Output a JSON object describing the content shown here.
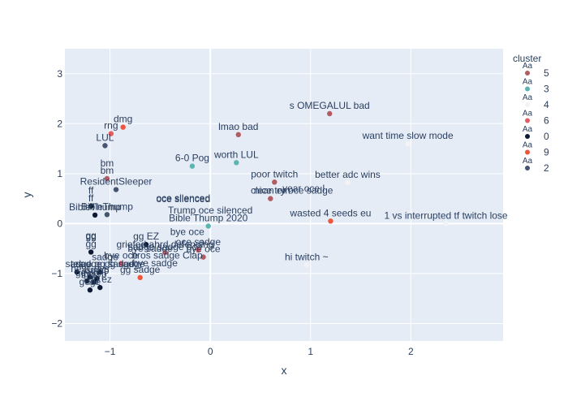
{
  "chart_data": {
    "type": "scatter",
    "title": "",
    "xlabel": "x",
    "ylabel": "y",
    "xlim": [
      -1.45,
      2.92
    ],
    "ylim": [
      -2.35,
      3.5
    ],
    "x_ticks": [
      -1,
      0,
      1,
      2
    ],
    "y_ticks": [
      -2,
      -1,
      0,
      1,
      2,
      3
    ],
    "x_tick_labels": [
      "−1",
      "0",
      "1",
      "2"
    ],
    "y_tick_labels": [
      "−2",
      "−1",
      "0",
      "1",
      "2",
      "3"
    ],
    "grid": true,
    "legend": {
      "title": "cluster",
      "placement": "top-right",
      "symbol_text": "Aa"
    },
    "series": [
      {
        "name": "5",
        "color": "#b25b61",
        "points": [
          {
            "x": 1.19,
            "y": 2.2,
            "label": "s OMEGALUL bad"
          },
          {
            "x": 0.28,
            "y": 1.78,
            "label": "lmao bad"
          },
          {
            "x": -1.03,
            "y": 0.9,
            "label": "bm"
          },
          {
            "x": 0.64,
            "y": 0.83,
            "label": "poor twitch"
          },
          {
            "x": 0.6,
            "y": 0.5,
            "label": "clean em"
          },
          {
            "x": -0.07,
            "y": -0.67,
            "label": "bye oce"
          }
        ]
      },
      {
        "name": "3",
        "color": "#5bb6b0",
        "points": [
          {
            "x": -0.18,
            "y": 1.15,
            "label": "6-0 Pog"
          },
          {
            "x": 0.26,
            "y": 1.22,
            "label": "worth LUL"
          },
          {
            "x": -0.02,
            "y": -0.05,
            "label": "Bible Thump 2020"
          }
        ]
      },
      {
        "name": "4",
        "color": "#f3f3f7",
        "points": [
          {
            "x": 1.97,
            "y": 1.6,
            "label": "want time slow mode"
          },
          {
            "x": 1.37,
            "y": 0.82,
            "label": "better adc wins"
          },
          {
            "x": 2.35,
            "y": 0.0,
            "label": "1 vs interrupted tf twitch lose"
          },
          {
            "x": 0.96,
            "y": -0.83,
            "label": "hi twitch ~"
          },
          {
            "x": -0.43,
            "y": -0.8,
            "label": "bros sadge Clap"
          }
        ]
      },
      {
        "name": "6",
        "color": "#e25e63",
        "points": [
          {
            "x": -0.99,
            "y": 1.8,
            "label": "rng"
          },
          {
            "x": -0.45,
            "y": -0.58,
            "label": "griefed ahrd defending"
          },
          {
            "x": -0.12,
            "y": -0.53,
            "label": "oce sadge"
          },
          {
            "x": -0.89,
            "y": -0.8,
            "label": "bye oce"
          }
        ]
      },
      {
        "name": "0",
        "color": "#0d1a33",
        "points": [
          {
            "x": -1.19,
            "y": 0.35,
            "label": "ff"
          },
          {
            "x": -1.15,
            "y": 0.17,
            "label": "BibleThump"
          },
          {
            "x": -0.64,
            "y": -0.42,
            "label": "gg EZ"
          },
          {
            "x": -1.19,
            "y": -0.57,
            "label": "gg"
          },
          {
            "x": -1.1,
            "y": -0.97,
            "label": "sadge gg sadge"
          },
          {
            "x": -1.33,
            "y": -0.97,
            "label": "tes"
          },
          {
            "x": -1.2,
            "y": -1.07,
            "label": "heyGuys"
          },
          {
            "x": -1.13,
            "y": -1.1,
            "label": "dump"
          },
          {
            "x": -1.16,
            "y": -1.17,
            "label": "iggwp"
          },
          {
            "x": -1.23,
            "y": -1.15,
            "label": "ggwp"
          },
          {
            "x": -1.1,
            "y": -1.28,
            "label": "gg ez"
          },
          {
            "x": -1.2,
            "y": -1.33,
            "label": "gege"
          }
        ]
      },
      {
        "name": "9",
        "color": "#ef553b",
        "points": [
          {
            "x": -0.87,
            "y": 1.93,
            "label": "dmg"
          },
          {
            "x": 1.2,
            "y": 0.05,
            "label": "wasted 4 seeds eu"
          },
          {
            "x": -0.7,
            "y": -1.08,
            "label": "gg sadge"
          }
        ]
      },
      {
        "name": "2",
        "color": "#455570",
        "points": [
          {
            "x": -1.05,
            "y": 1.56,
            "label": "LUL"
          },
          {
            "x": -0.94,
            "y": 0.68,
            "label": "ResidentSleeper"
          },
          {
            "x": -1.03,
            "y": 0.18,
            "label": "BibleThump"
          }
        ]
      }
    ],
    "extra_labels": [
      {
        "x": -0.27,
        "y": 0.35,
        "text": "oce silenced",
        "color": "#2a3f5f"
      },
      {
        "x": -0.27,
        "y": 0.33,
        "text": "oce silenced",
        "color": "#2a3f5f"
      },
      {
        "x": 0.0,
        "y": 0.1,
        "text": "Trump oce silenced",
        "color": "#2a3f5f"
      },
      {
        "x": 0.83,
        "y": 0.5,
        "text": "nice try oce sadge",
        "color": "#2a3f5f"
      },
      {
        "x": 0.93,
        "y": 0.54,
        "text": "year oce l",
        "color": "#2a3f5f"
      },
      {
        "x": -0.23,
        "y": -0.33,
        "text": "bye oce",
        "color": "#2a3f5f"
      },
      {
        "x": -0.45,
        "y": -0.63,
        "text": "sadge sadge oce",
        "color": "#2a3f5f"
      },
      {
        "x": -0.6,
        "y": -0.66,
        "text": "bye sadge",
        "color": "#2a3f5f"
      },
      {
        "x": -0.55,
        "y": -0.95,
        "text": "bye sadge",
        "color": "#2a3f5f"
      },
      {
        "x": -1.19,
        "y": -0.4,
        "text": "gg",
        "color": "#2a3f5f"
      },
      {
        "x": -1.19,
        "y": -0.42,
        "text": "gg",
        "color": "#2a3f5f"
      },
      {
        "x": -1.19,
        "y": 0.5,
        "text": "ff",
        "color": "#2a3f5f"
      },
      {
        "x": -1.03,
        "y": 1.05,
        "text": "bm",
        "color": "#2a3f5f"
      },
      {
        "x": -1.05,
        "y": -0.83,
        "text": "sadge",
        "color": "#2a3f5f"
      },
      {
        "x": -1.0,
        "y": -0.97,
        "text": "sadge gg sadge",
        "color": "#2a3f5f"
      }
    ]
  }
}
